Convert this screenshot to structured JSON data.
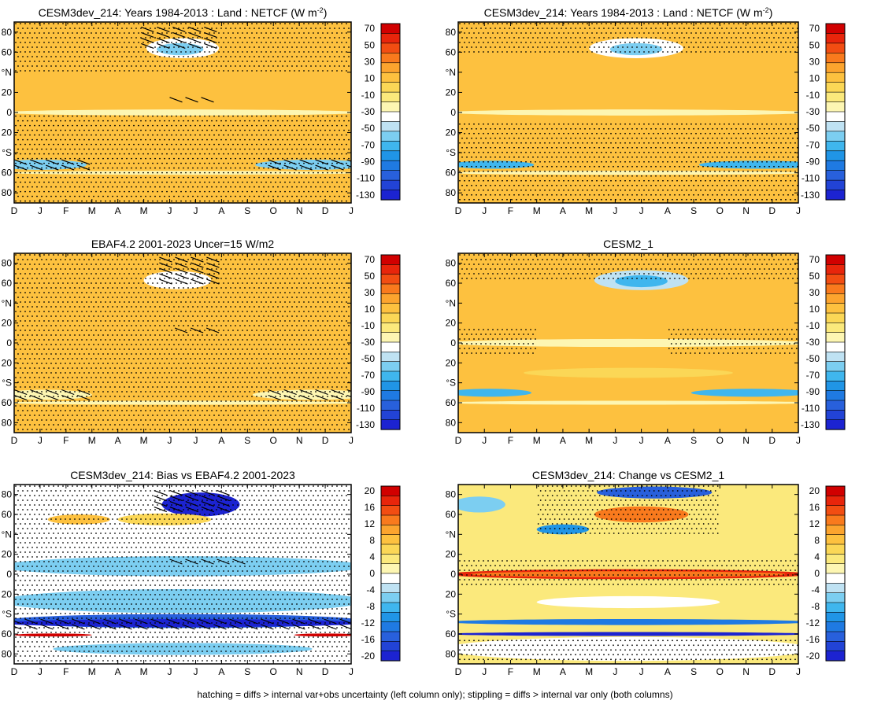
{
  "figure_note": "hatching = diffs > internal var+obs uncertainty (left column only); stippling = diffs > internal var only (both columns)",
  "colors": {
    "standard_scale": [
      "#d10000",
      "#e8250b",
      "#f24d12",
      "#f97a1d",
      "#fca42e",
      "#fdc13f",
      "#fbd756",
      "#fbe97c",
      "#fdf6b2",
      "#ffffff",
      "#bfe2f3",
      "#7ccef1",
      "#3fb6ee",
      "#2095e6",
      "#1f7ae2",
      "#2860dc",
      "#2243d6",
      "#1c23d1"
    ],
    "diff_scale": [
      "#d10000",
      "#e8250b",
      "#f24d12",
      "#f97a1d",
      "#fca42e",
      "#fdc13f",
      "#fbd756",
      "#fbe97c",
      "#fdf6b2",
      "#ffffff",
      "#bfe2f3",
      "#7ccef1",
      "#3fb6ee",
      "#2095e6",
      "#1f7ae2",
      "#2860dc",
      "#2243d6",
      "#1c23d1"
    ],
    "frame": "#000000",
    "stipple": "#000000"
  },
  "chart_data": [
    {
      "id": "p1",
      "type": "heatmap",
      "title": "CESM3dev_214: Years 1984-2013 : Land : NETCF (W m",
      "title_sup": "-2",
      "title_end": ")",
      "xlabels": [
        "D",
        "J",
        "F",
        "M",
        "A",
        "M",
        "J",
        "J",
        "A",
        "S",
        "O",
        "N",
        "D",
        "J"
      ],
      "ylabels": [
        "80",
        "60",
        "°N",
        "20",
        "0",
        "20",
        "°S",
        "60",
        "80"
      ],
      "ylim": [
        -90,
        90
      ],
      "colorbar_labels": [
        "70",
        "50",
        "30",
        "10",
        "-10",
        "-30",
        "-50",
        "-70",
        "-90",
        "-110",
        "-130"
      ],
      "colorbar_scale": "standard",
      "background_value": 5,
      "features": [
        {
          "value": -40,
          "center": [
            6.5,
            64
          ],
          "half_width": [
            1.4,
            10
          ]
        },
        {
          "value": -55,
          "center": [
            6.4,
            63
          ],
          "half_width": [
            0.9,
            6
          ]
        },
        {
          "value": -60,
          "center": [
            1,
            -52
          ],
          "half_width": [
            1.8,
            5
          ]
        },
        {
          "value": -60,
          "center": [
            11.5,
            -52
          ],
          "half_width": [
            2.2,
            5
          ]
        },
        {
          "value": -20,
          "center": [
            6.5,
            0
          ],
          "half_width": [
            7,
            3
          ]
        },
        {
          "value": -25,
          "center": [
            6.5,
            -60
          ],
          "half_width": [
            7,
            2
          ]
        }
      ],
      "hatching": [
        {
          "center": [
            6.5,
            75
          ],
          "half_width": [
            1.6,
            10
          ]
        },
        {
          "center": [
            7.0,
            12
          ],
          "half_width": [
            1.0,
            3
          ]
        },
        {
          "center": [
            1.2,
            -52
          ],
          "half_width": [
            1.8,
            5
          ]
        },
        {
          "center": [
            11.8,
            -52
          ],
          "half_width": [
            2.0,
            5
          ]
        }
      ],
      "stippling": [
        [
          0,
          13,
          40,
          90
        ],
        [
          0,
          13,
          -90,
          -2
        ]
      ]
    },
    {
      "id": "p2",
      "type": "heatmap",
      "title": "CESM3dev_214: Years 1984-2013 : Land : NETCF (W m",
      "title_sup": "-2",
      "title_end": ")",
      "xlabels": [
        "D",
        "J",
        "F",
        "M",
        "A",
        "M",
        "J",
        "J",
        "A",
        "S",
        "O",
        "N",
        "D",
        "J"
      ],
      "ylabels": [
        "80",
        "60",
        "°N",
        "20",
        "0",
        "20",
        "°S",
        "60",
        "80"
      ],
      "ylim": [
        -90,
        90
      ],
      "colorbar_labels": [
        "70",
        "50",
        "30",
        "10",
        "-10",
        "-30",
        "-50",
        "-70",
        "-90",
        "-110",
        "-130"
      ],
      "colorbar_scale": "standard",
      "background_value": 5,
      "features": [
        {
          "value": -40,
          "center": [
            6.8,
            64
          ],
          "half_width": [
            1.8,
            10
          ]
        },
        {
          "value": -60,
          "center": [
            6.8,
            63
          ],
          "half_width": [
            1.0,
            6
          ]
        },
        {
          "value": -65,
          "center": [
            1.3,
            -52
          ],
          "half_width": [
            1.6,
            4
          ]
        },
        {
          "value": -65,
          "center": [
            11.5,
            -52
          ],
          "half_width": [
            2.3,
            4
          ]
        },
        {
          "value": -25,
          "center": [
            6.5,
            0
          ],
          "half_width": [
            7,
            3
          ]
        },
        {
          "value": -25,
          "center": [
            6.5,
            -60
          ],
          "half_width": [
            7,
            2
          ]
        }
      ],
      "hatching": [],
      "stippling": [
        [
          0,
          13,
          60,
          90
        ],
        [
          0,
          13,
          -90,
          -10
        ]
      ]
    },
    {
      "id": "p3",
      "type": "heatmap",
      "title": "EBAF4.2 2001-2023 Uncer=15 W/m2",
      "title_sup": "",
      "title_end": "",
      "xlabels": [
        "D",
        "J",
        "F",
        "M",
        "A",
        "M",
        "J",
        "J",
        "A",
        "S",
        "O",
        "N",
        "D",
        "J"
      ],
      "ylabels": [
        "80",
        "60",
        "°N",
        "20",
        "0",
        "20",
        "°S",
        "60",
        "80"
      ],
      "ylim": [
        -90,
        90
      ],
      "colorbar_labels": [
        "70",
        "50",
        "30",
        "10",
        "-10",
        "-30",
        "-50",
        "-70",
        "-90",
        "-110",
        "-130"
      ],
      "colorbar_scale": "standard",
      "background_value": 8,
      "features": [
        {
          "value": -40,
          "center": [
            6.3,
            63
          ],
          "half_width": [
            1.3,
            9
          ]
        },
        {
          "value": -22,
          "center": [
            1.2,
            -52
          ],
          "half_width": [
            1.8,
            5
          ]
        },
        {
          "value": -22,
          "center": [
            11.5,
            -52
          ],
          "half_width": [
            2.3,
            5
          ]
        },
        {
          "value": -25,
          "center": [
            6.5,
            -60
          ],
          "half_width": [
            7,
            2
          ]
        },
        {
          "value": 12,
          "center": [
            6.8,
            -40
          ],
          "half_width": [
            1.8,
            6
          ]
        }
      ],
      "hatching": [
        {
          "center": [
            6.8,
            72
          ],
          "half_width": [
            1.2,
            14
          ]
        },
        {
          "center": [
            7.2,
            12
          ],
          "half_width": [
            1.0,
            3
          ]
        },
        {
          "center": [
            1.2,
            -52
          ],
          "half_width": [
            1.8,
            5
          ]
        },
        {
          "center": [
            11.8,
            -52
          ],
          "half_width": [
            2.0,
            5
          ]
        }
      ],
      "stippling": [
        [
          0,
          13,
          -90,
          90
        ]
      ]
    },
    {
      "id": "p4",
      "type": "heatmap",
      "title": "CESM2_1",
      "title_sup": "",
      "title_end": "",
      "xlabels": [
        "D",
        "J",
        "F",
        "M",
        "A",
        "M",
        "J",
        "J",
        "A",
        "S",
        "O",
        "N",
        "D",
        "J"
      ],
      "ylabels": [
        "80",
        "60",
        "°N",
        "20",
        "0",
        "20",
        "°S",
        "60",
        "80"
      ],
      "ylim": [
        -90,
        90
      ],
      "colorbar_labels": [
        "70",
        "50",
        "30",
        "10",
        "-10",
        "-30",
        "-50",
        "-70",
        "-90",
        "-110",
        "-130"
      ],
      "colorbar_scale": "standard",
      "background_value": 5,
      "features": [
        {
          "value": -45,
          "center": [
            7.0,
            63
          ],
          "half_width": [
            1.8,
            10
          ]
        },
        {
          "value": -70,
          "center": [
            7.0,
            62
          ],
          "half_width": [
            1.0,
            6
          ]
        },
        {
          "value": -65,
          "center": [
            1.2,
            -50
          ],
          "half_width": [
            1.6,
            4
          ]
        },
        {
          "value": -70,
          "center": [
            11.2,
            -50
          ],
          "half_width": [
            2.3,
            4
          ]
        },
        {
          "value": -25,
          "center": [
            6.5,
            0
          ],
          "half_width": [
            7,
            4
          ]
        },
        {
          "value": -25,
          "center": [
            6.5,
            -60
          ],
          "half_width": [
            7,
            2
          ]
        },
        {
          "value": 0,
          "center": [
            6.5,
            -30
          ],
          "half_width": [
            4,
            5
          ]
        }
      ],
      "hatching": [],
      "stippling": [
        [
          0,
          13,
          60,
          90
        ],
        [
          8,
          13,
          -15,
          15
        ],
        [
          0,
          3,
          -15,
          15
        ]
      ]
    },
    {
      "id": "p5",
      "type": "heatmap",
      "title": "CESM3dev_214: Bias vs EBAF4.2 2001-2023",
      "title_sup": "",
      "title_end": "",
      "xlabels": [
        "D",
        "J",
        "F",
        "M",
        "A",
        "M",
        "J",
        "J",
        "A",
        "S",
        "O",
        "N",
        "D",
        "J"
      ],
      "ylabels": [
        "80",
        "60",
        "°N",
        "20",
        "0",
        "20",
        "°S",
        "60",
        "80"
      ],
      "ylim": [
        -90,
        90
      ],
      "colorbar_labels": [
        "20",
        "16",
        "12",
        "8",
        "4",
        "0",
        "-4",
        "-8",
        "-12",
        "-16",
        "-20"
      ],
      "colorbar_scale": "diff",
      "background_value": 0,
      "features": [
        {
          "value": -5,
          "center": [
            6.5,
            8
          ],
          "half_width": [
            7,
            10
          ]
        },
        {
          "value": -5,
          "center": [
            6.5,
            -27
          ],
          "half_width": [
            7,
            12
          ]
        },
        {
          "value": -15,
          "center": [
            6.5,
            -47
          ],
          "half_width": [
            7,
            7
          ]
        },
        {
          "value": -22,
          "center": [
            6.5,
            -49
          ],
          "half_width": [
            7,
            4
          ]
        },
        {
          "value": -18,
          "center": [
            7.2,
            70
          ],
          "half_width": [
            1.5,
            12
          ]
        },
        {
          "value": 6,
          "center": [
            5.8,
            55
          ],
          "half_width": [
            1.8,
            6
          ]
        },
        {
          "value": 8,
          "center": [
            2.5,
            55
          ],
          "half_width": [
            1.2,
            5
          ]
        },
        {
          "value": 22,
          "center": [
            1.5,
            -61
          ],
          "half_width": [
            1.5,
            1.5
          ]
        },
        {
          "value": 22,
          "center": [
            12,
            -61
          ],
          "half_width": [
            1.2,
            1.5
          ]
        },
        {
          "value": -6,
          "center": [
            6.5,
            -75
          ],
          "half_width": [
            5,
            6
          ]
        }
      ],
      "hatching": [
        {
          "center": [
            7.0,
            72
          ],
          "half_width": [
            1.6,
            12
          ]
        },
        {
          "center": [
            7.5,
            12
          ],
          "half_width": [
            1.5,
            3
          ]
        },
        {
          "center": [
            6.5,
            -50
          ],
          "half_width": [
            6.7,
            5
          ]
        }
      ],
      "stippling": [
        [
          0,
          13,
          -90,
          90
        ]
      ]
    },
    {
      "id": "p6",
      "type": "heatmap",
      "title": "CESM3dev_214: Change vs CESM2_1",
      "title_sup": "",
      "title_end": "",
      "xlabels": [
        "D",
        "J",
        "F",
        "M",
        "A",
        "M",
        "J",
        "J",
        "A",
        "S",
        "O",
        "N",
        "D",
        "J"
      ],
      "ylabels": [
        "80",
        "60",
        "°N",
        "20",
        "0",
        "20",
        "°S",
        "60",
        "80"
      ],
      "ylim": [
        -90,
        90
      ],
      "colorbar_labels": [
        "20",
        "16",
        "12",
        "8",
        "4",
        "0",
        "-4",
        "-8",
        "-12",
        "-16",
        "-20"
      ],
      "colorbar_scale": "diff",
      "background_value": 3,
      "features": [
        {
          "value": 16,
          "center": [
            6.5,
            0
          ],
          "half_width": [
            7,
            5
          ]
        },
        {
          "value": 12,
          "center": [
            6.5,
            0
          ],
          "half_width": [
            6,
            3
          ]
        },
        {
          "value": -12,
          "center": [
            6.5,
            -48
          ],
          "half_width": [
            7,
            3
          ]
        },
        {
          "value": -18,
          "center": [
            6.5,
            -60
          ],
          "half_width": [
            7,
            2
          ]
        },
        {
          "value": 12,
          "center": [
            7.0,
            60
          ],
          "half_width": [
            1.8,
            8
          ]
        },
        {
          "value": -10,
          "center": [
            4.0,
            45
          ],
          "half_width": [
            1.0,
            5
          ]
        },
        {
          "value": -14,
          "center": [
            7.5,
            82
          ],
          "half_width": [
            2.2,
            6
          ]
        },
        {
          "value": -5,
          "center": [
            0.8,
            70
          ],
          "half_width": [
            1.0,
            8
          ]
        },
        {
          "value": 0,
          "center": [
            6.5,
            -28
          ],
          "half_width": [
            3.5,
            6
          ]
        },
        {
          "value": 0,
          "center": [
            6.5,
            -75
          ],
          "half_width": [
            7,
            12
          ]
        }
      ],
      "hatching": [],
      "stippling": [
        [
          0,
          13,
          -15,
          15
        ],
        [
          0,
          13,
          -90,
          -65
        ],
        [
          3,
          10,
          40,
          90
        ]
      ]
    }
  ]
}
